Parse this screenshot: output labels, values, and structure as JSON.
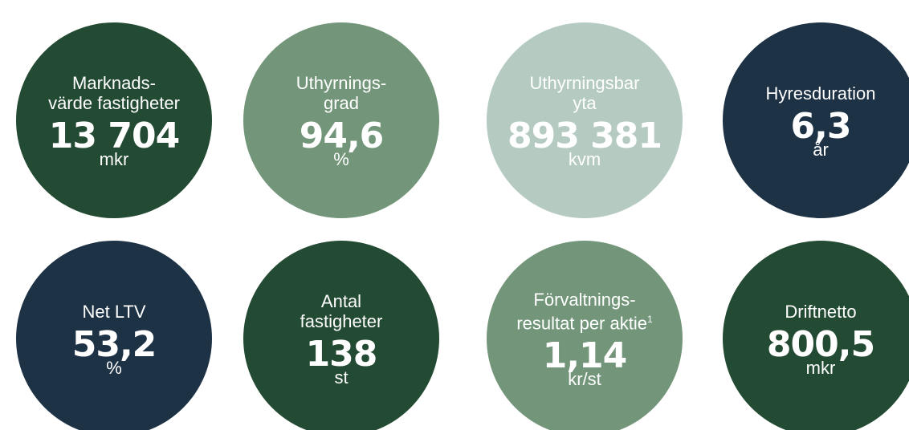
{
  "kpis": [
    {
      "label": [
        "Marknads-",
        "värde fastigheter"
      ],
      "value": "13 704",
      "unit": "mkr",
      "color": "#234a32"
    },
    {
      "label": [
        "Uthyrnings-",
        "grad"
      ],
      "value": "94,6",
      "unit": "%",
      "color": "#73967a"
    },
    {
      "label": [
        "Uthyrningsbar",
        "yta"
      ],
      "value": "893 381",
      "unit": "kvm",
      "color": "#b5cbc1"
    },
    {
      "label": [
        "Hyresduration"
      ],
      "value": "6,3",
      "unit": "år",
      "color": "#1e3246"
    },
    {
      "label": [
        "Net LTV"
      ],
      "value": "53,2",
      "unit": "%",
      "color": "#1e3246"
    },
    {
      "label": [
        "Antal",
        "fastigheter"
      ],
      "value": "138",
      "unit": "st",
      "color": "#234a32"
    },
    {
      "label": [
        "Förvaltnings-",
        "resultat per aktie"
      ],
      "footnote": "1",
      "value": "1,14",
      "unit": "kr/st",
      "color": "#73967a"
    },
    {
      "label": [
        "Driftnetto"
      ],
      "value": "800,5",
      "unit": "mkr",
      "color": "#234a32"
    }
  ]
}
